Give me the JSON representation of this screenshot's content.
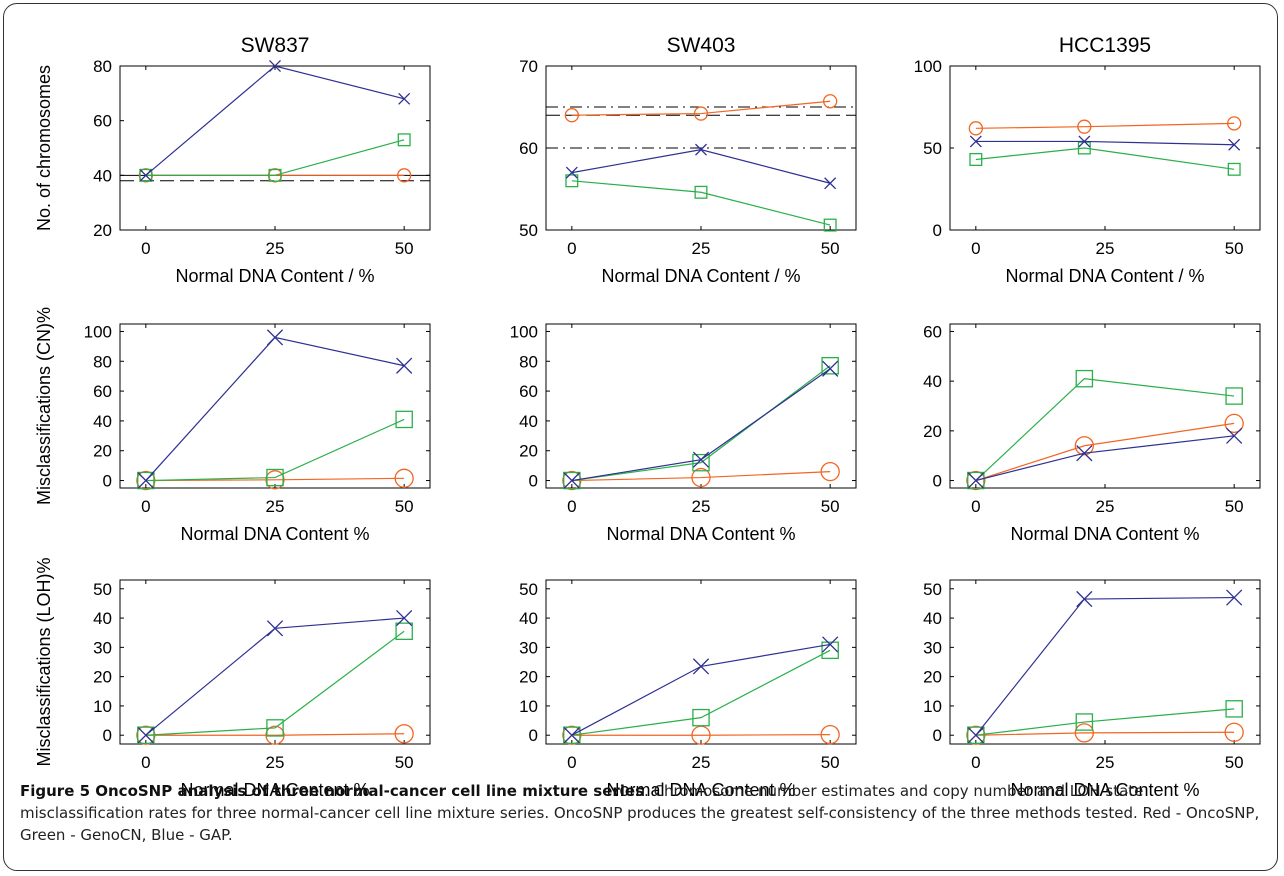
{
  "colors": {
    "oncosnp": "#f26522",
    "genocn": "#2ab04a",
    "gap": "#2e3192",
    "ref_line": "#000000"
  },
  "icons": {
    "oncosnp": "circle-marker",
    "genocn": "square-marker",
    "gap": "cross-marker"
  },
  "caption": {
    "title": "Figure 5 OncoSNP analysis of three normal-cancer cell line mixture series",
    "text": ". Chromosome number estimates and copy number and LOH state misclassification rates for three normal-cancer cell line mixture series. OncoSNP produces the greatest self-consistency of the three methods tested. Red - OncoSNP, Green - GenoCN, Blue - GAP."
  },
  "chart_data": [
    {
      "type": "line",
      "panel": "SW837-chromosomes",
      "title": "SW837",
      "ylabel": "No. of chromosomes",
      "xlabel": "Normal DNA Content / %",
      "x": [
        0,
        25,
        50
      ],
      "xticks": [
        0,
        25,
        50
      ],
      "xlim": [
        -5,
        55
      ],
      "ylim": [
        20,
        80
      ],
      "yticks": [
        20,
        40,
        60,
        80
      ],
      "ref_lines": [
        {
          "y": 38,
          "style": "dashed"
        },
        {
          "y": 40,
          "style": "solid"
        }
      ],
      "series": [
        {
          "marker": "circle",
          "color": "#f26522",
          "y": [
            40,
            40,
            40
          ]
        },
        {
          "marker": "square",
          "color": "#2ab04a",
          "y": [
            40,
            40,
            53
          ]
        },
        {
          "marker": "cross",
          "color": "#2e3192",
          "y": [
            40,
            80,
            68
          ]
        }
      ]
    },
    {
      "type": "line",
      "panel": "SW403-chromosomes",
      "title": "SW403",
      "ylabel": "",
      "xlabel": "Normal DNA Content / %",
      "x": [
        0,
        25,
        50
      ],
      "xticks": [
        0,
        25,
        50
      ],
      "xlim": [
        -5,
        55
      ],
      "ylim": [
        50,
        70
      ],
      "yticks": [
        50,
        60,
        70
      ],
      "ref_lines": [
        {
          "y": 65,
          "style": "dashdot"
        },
        {
          "y": 64,
          "style": "dashed"
        },
        {
          "y": 60,
          "style": "dashdot"
        }
      ],
      "series": [
        {
          "marker": "circle",
          "color": "#f26522",
          "y": [
            64,
            64.2,
            65.7
          ]
        },
        {
          "marker": "square",
          "color": "#2ab04a",
          "y": [
            56,
            54.6,
            50.6
          ]
        },
        {
          "marker": "cross",
          "color": "#2e3192",
          "y": [
            57,
            59.8,
            55.7
          ]
        }
      ]
    },
    {
      "type": "line",
      "panel": "HCC1395-chromosomes",
      "title": "HCC1395",
      "ylabel": "",
      "xlabel": "Normal DNA Content / %",
      "x": [
        0,
        21,
        50
      ],
      "xticks": [
        0,
        25,
        50
      ],
      "xlim": [
        -5,
        55
      ],
      "ylim": [
        0,
        100
      ],
      "yticks": [
        0,
        50,
        100
      ],
      "ref_lines": [],
      "series": [
        {
          "marker": "circle",
          "color": "#f26522",
          "y": [
            62,
            63,
            65
          ]
        },
        {
          "marker": "square",
          "color": "#2ab04a",
          "y": [
            43,
            50,
            37
          ]
        },
        {
          "marker": "cross",
          "color": "#2e3192",
          "y": [
            54,
            54,
            52
          ]
        }
      ]
    },
    {
      "type": "line",
      "panel": "SW837-cn",
      "title": "",
      "ylabel": "Misclassifications (CN)%",
      "xlabel": "Normal DNA Content %",
      "x": [
        0,
        25,
        50
      ],
      "xticks": [
        0,
        25,
        50
      ],
      "xlim": [
        -5,
        55
      ],
      "ylim": [
        -5,
        105
      ],
      "yticks": [
        0,
        20,
        40,
        60,
        80,
        100
      ],
      "ref_lines": [],
      "series": [
        {
          "marker": "circle",
          "color": "#f26522",
          "y": [
            0,
            0.5,
            1.5
          ]
        },
        {
          "marker": "square",
          "color": "#2ab04a",
          "y": [
            0,
            2,
            41
          ]
        },
        {
          "marker": "cross",
          "color": "#2e3192",
          "y": [
            0,
            96,
            77
          ]
        }
      ]
    },
    {
      "type": "line",
      "panel": "SW403-cn",
      "title": "",
      "ylabel": "",
      "xlabel": "Normal DNA Content %",
      "x": [
        0,
        25,
        50
      ],
      "xticks": [
        0,
        25,
        50
      ],
      "xlim": [
        -5,
        55
      ],
      "ylim": [
        -5,
        105
      ],
      "yticks": [
        0,
        20,
        40,
        60,
        80,
        100
      ],
      "ref_lines": [],
      "series": [
        {
          "marker": "circle",
          "color": "#f26522",
          "y": [
            0,
            2,
            6
          ]
        },
        {
          "marker": "square",
          "color": "#2ab04a",
          "y": [
            0,
            12,
            77
          ]
        },
        {
          "marker": "cross",
          "color": "#2e3192",
          "y": [
            0,
            14,
            75
          ]
        }
      ]
    },
    {
      "type": "line",
      "panel": "HCC1395-cn",
      "title": "",
      "ylabel": "",
      "xlabel": "Normal DNA Content %",
      "x": [
        0,
        21,
        50
      ],
      "xticks": [
        0,
        25,
        50
      ],
      "xlim": [
        -5,
        55
      ],
      "ylim": [
        -3,
        63
      ],
      "yticks": [
        0,
        20,
        40,
        60
      ],
      "ref_lines": [],
      "series": [
        {
          "marker": "circle",
          "color": "#f26522",
          "y": [
            0,
            14,
            23
          ]
        },
        {
          "marker": "square",
          "color": "#2ab04a",
          "y": [
            0,
            41,
            34
          ]
        },
        {
          "marker": "cross",
          "color": "#2e3192",
          "y": [
            0,
            11,
            18
          ]
        }
      ]
    },
    {
      "type": "line",
      "panel": "SW837-loh",
      "title": "",
      "ylabel": "Misclassifications (LOH)%",
      "xlabel": "Normal DNA Content %",
      "x": [
        0,
        25,
        50
      ],
      "xticks": [
        0,
        25,
        50
      ],
      "xlim": [
        -5,
        55
      ],
      "ylim": [
        -3,
        53
      ],
      "yticks": [
        0,
        10,
        20,
        30,
        40,
        50
      ],
      "ref_lines": [],
      "series": [
        {
          "marker": "circle",
          "color": "#f26522",
          "y": [
            0,
            0,
            0.5
          ]
        },
        {
          "marker": "square",
          "color": "#2ab04a",
          "y": [
            0,
            2.5,
            35.5
          ]
        },
        {
          "marker": "cross",
          "color": "#2e3192",
          "y": [
            0,
            36.5,
            40
          ]
        }
      ]
    },
    {
      "type": "line",
      "panel": "SW403-loh",
      "title": "",
      "ylabel": "",
      "xlabel": "Normal DNA Content %",
      "x": [
        0,
        25,
        50
      ],
      "xticks": [
        0,
        25,
        50
      ],
      "xlim": [
        -5,
        55
      ],
      "ylim": [
        -3,
        53
      ],
      "yticks": [
        0,
        10,
        20,
        30,
        40,
        50
      ],
      "ref_lines": [],
      "series": [
        {
          "marker": "circle",
          "color": "#f26522",
          "y": [
            0,
            0,
            0.2
          ]
        },
        {
          "marker": "square",
          "color": "#2ab04a",
          "y": [
            0,
            6,
            29
          ]
        },
        {
          "marker": "cross",
          "color": "#2e3192",
          "y": [
            0,
            23.5,
            31
          ]
        }
      ]
    },
    {
      "type": "line",
      "panel": "HCC1395-loh",
      "title": "",
      "ylabel": "",
      "xlabel": "Normal DNA Content %",
      "x": [
        0,
        21,
        50
      ],
      "xticks": [
        0,
        25,
        50
      ],
      "xlim": [
        -5,
        55
      ],
      "ylim": [
        -3,
        53
      ],
      "yticks": [
        0,
        10,
        20,
        30,
        40,
        50
      ],
      "ref_lines": [],
      "series": [
        {
          "marker": "circle",
          "color": "#f26522",
          "y": [
            0,
            0.8,
            1
          ]
        },
        {
          "marker": "square",
          "color": "#2ab04a",
          "y": [
            0,
            4.5,
            9
          ]
        },
        {
          "marker": "cross",
          "color": "#2e3192",
          "y": [
            0,
            46.5,
            47
          ]
        }
      ]
    }
  ]
}
